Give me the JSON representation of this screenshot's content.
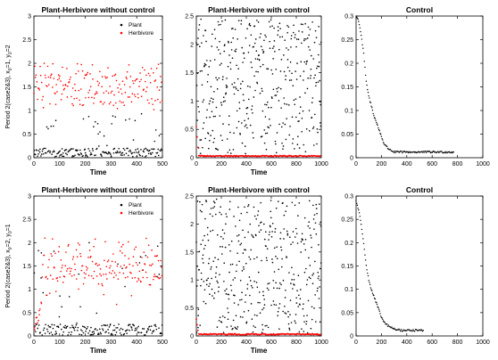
{
  "chart_data": [
    {
      "type": "scatter",
      "title": "Plant-Herbivore without control",
      "xlabel": "Time",
      "ylabel": "Period 2(case2&3), x",
      "ylabel_sub1": "0",
      "ylabel_mid": "=1, y",
      "ylabel_sub2": "0",
      "ylabel_end": "=2",
      "xlim": [
        0,
        500
      ],
      "ylim": [
        0,
        3
      ],
      "xticks": [
        "0",
        "100",
        "200",
        "300",
        "400",
        "500"
      ],
      "yticks": [
        "0",
        "0.5",
        "1",
        "1.5",
        "2",
        "2.5",
        "3"
      ],
      "legend": [
        "Plant",
        "Herbivore"
      ],
      "legend_position": "top-right",
      "colors": {
        "plant": "#000000",
        "herbivore": "#ff0000"
      },
      "series": [
        {
          "name": "Plant",
          "color": "#000000",
          "pattern": "chaotic",
          "n": 190,
          "x_range": [
            0,
            500
          ],
          "band": [
            0.02,
            0.2
          ],
          "sparse_max": 0.95
        },
        {
          "name": "Herbivore",
          "color": "#ff0000",
          "pattern": "chaotic",
          "n": 190,
          "x_range": [
            0,
            500
          ],
          "band": [
            0.8,
            2.25
          ],
          "dense_center": 1.55
        }
      ]
    },
    {
      "type": "scatter",
      "title": "Plant-Herbivore with control",
      "xlabel": "Time",
      "xlim": [
        0,
        1000
      ],
      "ylim": [
        0,
        2.5
      ],
      "xticks": [
        "0",
        "200",
        "400",
        "600",
        "800",
        "1000"
      ],
      "yticks": [
        "0",
        "0.5",
        "1",
        "1.5",
        "2",
        "2.5"
      ],
      "colors": {
        "plant": "#000000",
        "herbivore": "#ff0000"
      },
      "series": [
        {
          "color": "#000000",
          "pattern": "chaotic",
          "n": 420,
          "x_range": [
            0,
            1000
          ],
          "band": [
            0.05,
            2.45
          ]
        },
        {
          "color": "#ff0000",
          "pattern": "controlled-near-zero",
          "value": 0.03,
          "x_range": [
            0,
            1000
          ],
          "initial_peak": 0.55
        }
      ]
    },
    {
      "type": "line",
      "title": "Control",
      "xlim": [
        0,
        1000
      ],
      "ylim": [
        0,
        0.3
      ],
      "xticks": [
        "0",
        "200",
        "400",
        "600",
        "800",
        "1000"
      ],
      "yticks": [
        "0",
        "0.05",
        "0.1",
        "0.15",
        "0.2",
        "0.25",
        "0.3"
      ],
      "series": [
        {
          "marker": "dots",
          "color": "#000000",
          "x": [
            0,
            20,
            40,
            60,
            80,
            100,
            120,
            140,
            160,
            180,
            200,
            220,
            250,
            300,
            400,
            500,
            600,
            700,
            770
          ],
          "y": [
            0.3,
            0.29,
            0.26,
            0.22,
            0.16,
            0.13,
            0.11,
            0.09,
            0.075,
            0.06,
            0.045,
            0.03,
            0.02,
            0.012,
            0.012,
            0.012,
            0.012,
            0.012,
            0.012
          ]
        }
      ]
    },
    {
      "type": "scatter",
      "title": "Plant-Herbivore without control",
      "xlabel": "Time",
      "ylabel": "Period 2(case2&3), x",
      "ylabel_sub1": "0",
      "ylabel_mid": "=2, y",
      "ylabel_sub2": "0",
      "ylabel_end": "=1",
      "xlim": [
        0,
        500
      ],
      "ylim": [
        0,
        3
      ],
      "xticks": [
        "0",
        "100",
        "200",
        "300",
        "400",
        "500"
      ],
      "yticks": [
        "0",
        "0.5",
        "1",
        "1.5",
        "2",
        "2.5",
        "3"
      ],
      "legend": [
        "Plant",
        "Herbivore"
      ],
      "legend_position": "top-right",
      "colors": {
        "plant": "#000000",
        "herbivore": "#ff0000"
      },
      "series": [
        {
          "name": "Plant",
          "color": "#000000",
          "pattern": "chaotic",
          "n": 190,
          "x_range": [
            0,
            500
          ],
          "band": [
            0.02,
            0.25
          ],
          "sparse_max": 2.0
        },
        {
          "name": "Herbivore",
          "color": "#ff0000",
          "pattern": "chaotic",
          "n": 190,
          "x_range": [
            0,
            500
          ],
          "band": [
            0.6,
            2.25
          ],
          "dense_center": 1.65,
          "initial_rise": true
        }
      ]
    },
    {
      "type": "scatter",
      "title": "Plant-Herbivore with control",
      "xlabel": "Time",
      "xlim": [
        0,
        1000
      ],
      "ylim": [
        0,
        2.5
      ],
      "xticks": [
        "0",
        "200",
        "400",
        "600",
        "800",
        "1000"
      ],
      "yticks": [
        "0",
        "0.5",
        "1",
        "1.5",
        "2",
        "2.5"
      ],
      "colors": {
        "plant": "#000000",
        "herbivore": "#ff0000"
      },
      "series": [
        {
          "color": "#000000",
          "pattern": "chaotic",
          "n": 420,
          "x_range": [
            0,
            1000
          ],
          "band": [
            0.05,
            2.45
          ]
        },
        {
          "color": "#ff0000",
          "pattern": "controlled-near-zero",
          "value": 0.03,
          "x_range": [
            0,
            1000
          ],
          "initial_peak": 0.3
        }
      ]
    },
    {
      "type": "line",
      "title": "Control",
      "xlim": [
        0,
        1000
      ],
      "ylim": [
        0,
        0.3
      ],
      "xticks": [
        "0",
        "200",
        "400",
        "600",
        "800",
        "1000"
      ],
      "yticks": [
        "0",
        "0.05",
        "0.1",
        "0.15",
        "0.2",
        "0.25",
        "0.3"
      ],
      "series": [
        {
          "marker": "dots",
          "color": "#000000",
          "x": [
            0,
            20,
            40,
            60,
            80,
            100,
            120,
            140,
            160,
            180,
            200,
            220,
            250,
            300,
            350,
            400,
            450,
            500,
            530
          ],
          "y": [
            0.29,
            0.27,
            0.24,
            0.2,
            0.15,
            0.12,
            0.1,
            0.085,
            0.07,
            0.055,
            0.04,
            0.03,
            0.022,
            0.015,
            0.012,
            0.012,
            0.012,
            0.012,
            0.012
          ]
        }
      ]
    }
  ]
}
